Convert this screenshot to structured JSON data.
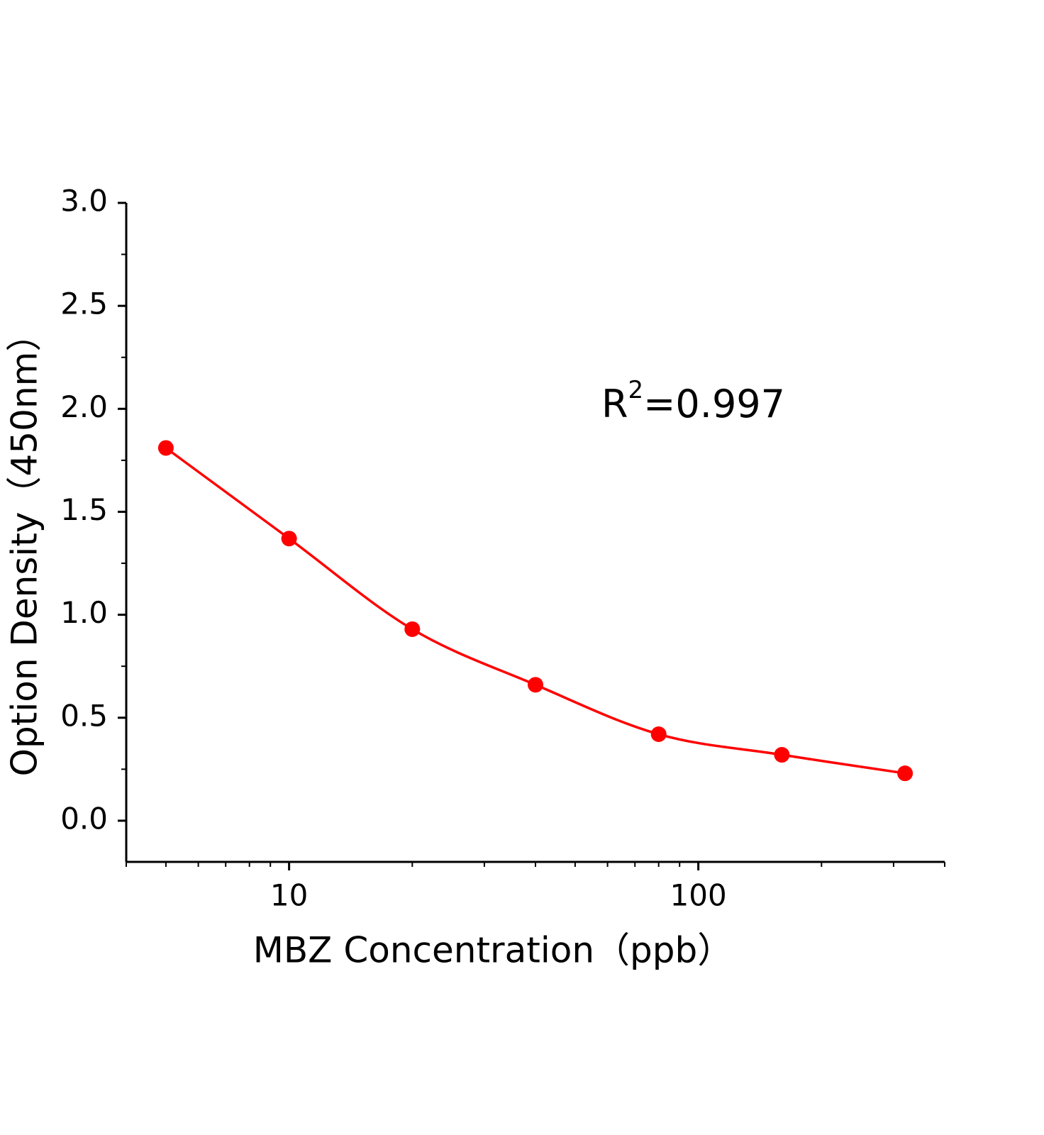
{
  "chart_data": {
    "type": "scatter",
    "x_label": "MBZ Concentration（ppb）",
    "y_label": "Option Density（450nm）",
    "annotation": {
      "base": "R",
      "superscript": "2",
      "text": "=0.997"
    },
    "x": [
      5,
      10,
      20,
      40,
      80,
      160,
      320
    ],
    "series": [
      {
        "color": "#ff0000",
        "values": [
          1.81,
          1.37,
          0.93,
          0.66,
          0.42,
          0.32,
          0.23
        ]
      }
    ],
    "x_scale": "log",
    "xlim": [
      4,
      400
    ],
    "xticks": [
      10,
      100
    ],
    "xminorticks": [
      4,
      5,
      6,
      7,
      8,
      9,
      20,
      30,
      40,
      50,
      60,
      70,
      80,
      90,
      200,
      300,
      400
    ],
    "ylim": [
      -0.2,
      3.0
    ],
    "yticks": [
      {
        "value": 0,
        "label": "0.0"
      },
      {
        "value": 0.5,
        "label": "0.5"
      },
      {
        "value": 1,
        "label": "1.0"
      },
      {
        "value": 1.5,
        "label": "1.5"
      },
      {
        "value": 2,
        "label": "2.0"
      },
      {
        "value": 2.5,
        "label": "2.5"
      },
      {
        "value": 3,
        "label": "3.0"
      }
    ],
    "yminorticks": [
      0.25,
      0.75,
      1.25,
      1.75,
      2.25,
      2.75
    ],
    "grid": false
  }
}
